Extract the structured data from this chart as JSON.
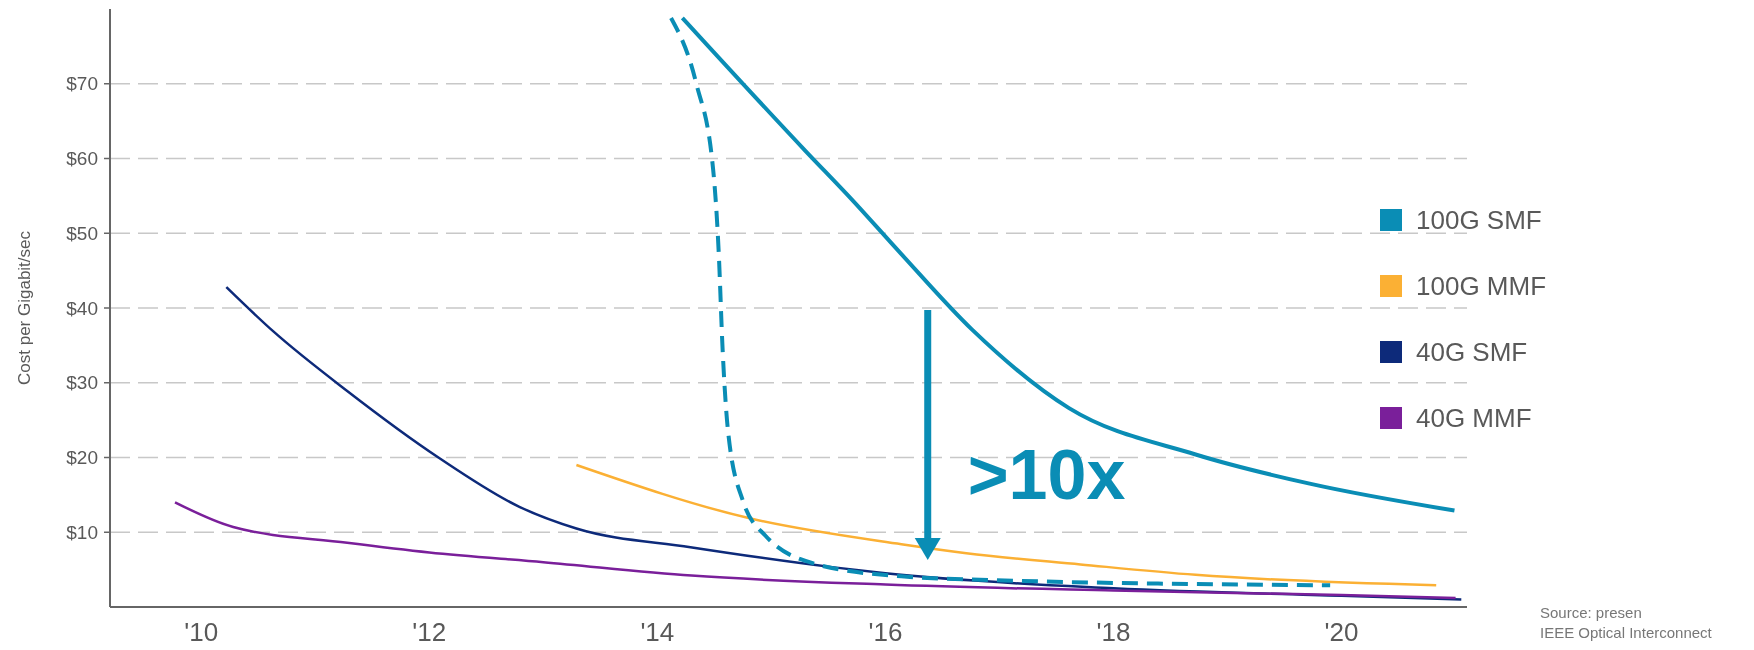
{
  "chart_data": {
    "type": "line",
    "ylabel": "Cost per Gigabit/sec",
    "xlim": [
      2009.2,
      2021.1
    ],
    "ylim": [
      0,
      80
    ],
    "xticks": [
      {
        "value": 2010,
        "label": "'10"
      },
      {
        "value": 2012,
        "label": "'12"
      },
      {
        "value": 2014,
        "label": "'14"
      },
      {
        "value": 2016,
        "label": "'16"
      },
      {
        "value": 2018,
        "label": "'18"
      },
      {
        "value": 2020,
        "label": "'20"
      }
    ],
    "yticks": [
      {
        "value": 10,
        "label": "$10"
      },
      {
        "value": 20,
        "label": "$20"
      },
      {
        "value": 30,
        "label": "$30"
      },
      {
        "value": 40,
        "label": "$40"
      },
      {
        "value": 50,
        "label": "$50"
      },
      {
        "value": 60,
        "label": "$60"
      },
      {
        "value": 70,
        "label": "$70"
      }
    ],
    "grid": "y",
    "legend": "right",
    "series": [
      {
        "name": "100G SMF",
        "color": "#0a8db5",
        "x": [
          2014.22,
          2015.3,
          2015.7,
          2016.14,
          2016.76,
          2017.61,
          2018.72,
          2019.72,
          2020.99
        ],
        "values": [
          78.8,
          61,
          54.6,
          47.2,
          37.1,
          26.6,
          20.4,
          16.5,
          12.9
        ]
      },
      {
        "name": "100G MMF",
        "color": "#fbb034",
        "x": [
          2013.29,
          2014.8,
          2016.14,
          2016.71,
          2017.71,
          2018.72,
          2020.83
        ],
        "values": [
          19,
          11.9,
          8.4,
          7.2,
          5.7,
          4.3,
          2.9
        ]
      },
      {
        "name": "40G SMF",
        "color": "#0d2a7a",
        "x": [
          2010.22,
          2010.63,
          2011.28,
          2012.08,
          2012.79,
          2013.29,
          2014.29,
          2015.55,
          2016,
          2018,
          2020,
          2021.05
        ],
        "values": [
          42.8,
          36.9,
          28.9,
          20,
          13.4,
          10.5,
          8,
          5.3,
          4.5,
          2.5,
          1.5,
          1
        ]
      },
      {
        "name": "40G MMF",
        "color": "#7a1f9a",
        "x": [
          2009.77,
          2010.28,
          2011.28,
          2012,
          2013,
          2014.3,
          2016,
          2018,
          2020,
          2021
        ],
        "values": [
          14,
          10.7,
          8.6,
          7.3,
          6,
          4.2,
          3,
          2.2,
          1.6,
          1.2
        ]
      },
      {
        "color": "#0a8db5",
        "line_style": "dashed",
        "x": [
          2014.12,
          2014.34,
          2014.49,
          2014.54,
          2014.57,
          2014.62,
          2014.75,
          2014.95,
          2015.4,
          2016.14,
          2016.71,
          2019.9
        ],
        "values": [
          78.8,
          70.1,
          58.4,
          46.8,
          35.2,
          23.5,
          14.2,
          9.5,
          5.7,
          4.1,
          3.7,
          2.9
        ]
      }
    ],
    "annotations": [
      ">10x",
      "Source: presen",
      "IEEE Optical Interconnect"
    ]
  }
}
